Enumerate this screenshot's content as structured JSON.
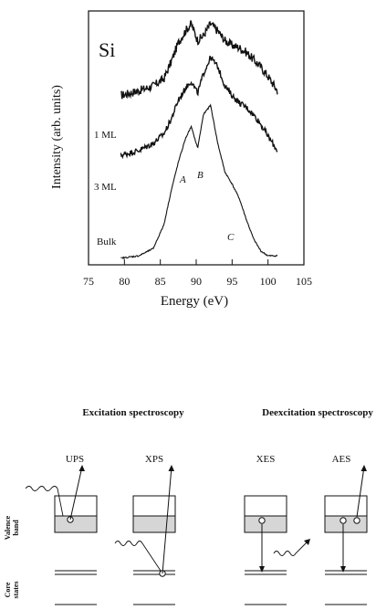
{
  "chart_data": {
    "type": "line",
    "element_label": "Si",
    "xlabel": "Energy (eV)",
    "ylabel": "Intensity (arb. units)",
    "xlim": [
      75,
      105
    ],
    "x_ticks": [
      75,
      80,
      85,
      90,
      95,
      100,
      105
    ],
    "series": [
      {
        "name": "1 ML",
        "x": [
          79.5,
          82,
          84,
          85.5,
          86.5,
          87.5,
          88.5,
          89.3,
          90.2,
          91,
          92,
          93,
          94,
          95,
          96,
          97,
          98,
          99,
          100,
          101.3
        ],
        "y": [
          0.7,
          0.72,
          0.74,
          0.77,
          0.84,
          0.92,
          0.97,
          1.0,
          0.93,
          0.95,
          1.0,
          0.97,
          0.93,
          0.91,
          0.9,
          0.88,
          0.85,
          0.82,
          0.78,
          0.72
        ]
      },
      {
        "name": "3 ML",
        "x": [
          79.5,
          82,
          84,
          85.5,
          86.5,
          87.5,
          88.5,
          89.3,
          90.2,
          91,
          92,
          93,
          94,
          95,
          96,
          97,
          98,
          99,
          100,
          101.3
        ],
        "y": [
          0.45,
          0.47,
          0.5,
          0.54,
          0.6,
          0.68,
          0.73,
          0.76,
          0.71,
          0.79,
          0.86,
          0.82,
          0.74,
          0.7,
          0.67,
          0.65,
          0.62,
          0.58,
          0.53,
          0.47
        ]
      },
      {
        "name": "Bulk",
        "x": [
          79.5,
          82,
          84,
          85.5,
          86.5,
          87.5,
          88.5,
          89.3,
          90.2,
          91,
          92,
          93,
          94,
          95,
          96,
          97,
          98,
          99,
          100,
          101.3
        ],
        "y": [
          0.02,
          0.03,
          0.06,
          0.16,
          0.3,
          0.42,
          0.52,
          0.57,
          0.48,
          0.62,
          0.66,
          0.5,
          0.38,
          0.33,
          0.27,
          0.18,
          0.1,
          0.05,
          0.03,
          0.03
        ]
      }
    ],
    "annotations": [
      "A",
      "B",
      "C"
    ]
  },
  "diagram": {
    "excitation_title": "Excitation spectroscopy",
    "deexcitation_title": "Deexcitation spectroscopy",
    "panels": [
      "UPS",
      "XPS",
      "XES",
      "AES"
    ],
    "valence_label": [
      "Valence",
      "band"
    ],
    "core_label": [
      "Core",
      "states"
    ]
  }
}
